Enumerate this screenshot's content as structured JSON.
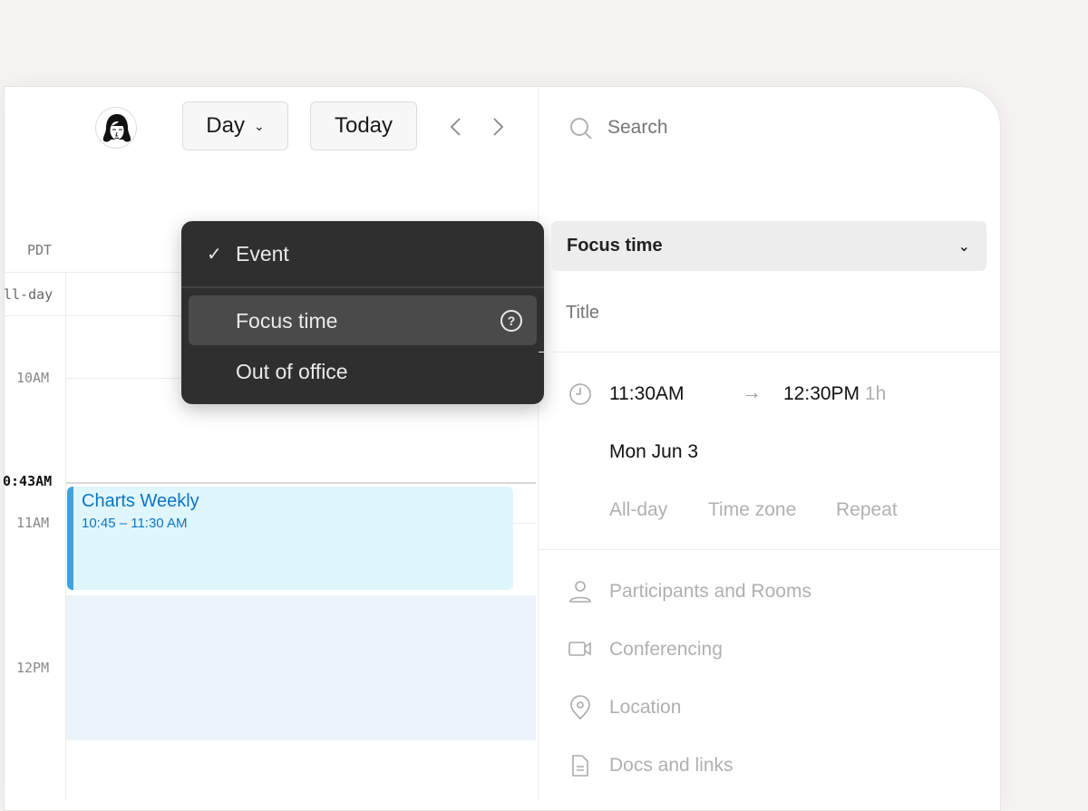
{
  "toolbar": {
    "view_label": "Day",
    "today_label": "Today"
  },
  "calendar": {
    "timezone": "PDT",
    "allday_label": "ll-day",
    "hours": [
      "10AM",
      "11AM",
      "12PM"
    ],
    "current_time": "0:43AM",
    "event": {
      "title": "Charts Weekly",
      "time": "10:45 – 11:30 AM",
      "accent": "#3ea3e0",
      "bg": "#e0f6fd"
    }
  },
  "menu": {
    "items": [
      {
        "label": "Event",
        "checked": true
      },
      {
        "label": "Focus time",
        "selected": true
      },
      {
        "label": "Out of office"
      }
    ]
  },
  "panel": {
    "search_placeholder": "Search",
    "type_select": "Focus time",
    "title_placeholder": "Title",
    "start": "11:30AM",
    "end": "12:30PM",
    "duration": "1h",
    "date": "Mon Jun 3",
    "options": [
      "All-day",
      "Time zone",
      "Repeat"
    ],
    "fields": [
      "Participants and Rooms",
      "Conferencing",
      "Location",
      "Docs and links"
    ]
  }
}
